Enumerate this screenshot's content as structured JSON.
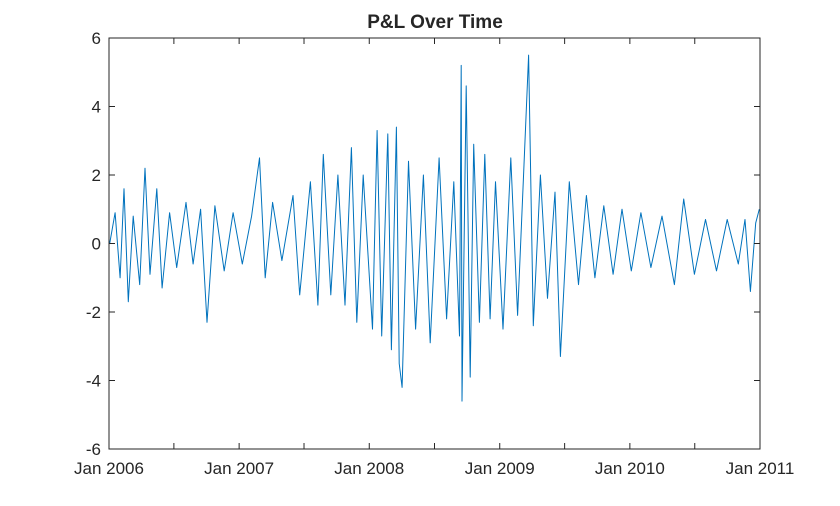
{
  "chart_data": {
    "type": "line",
    "title": "P&L Over Time",
    "xlabel": "",
    "ylabel": "",
    "xlim": [
      "2006-01-01",
      "2011-01-01"
    ],
    "ylim": [
      -6,
      6
    ],
    "grid": false,
    "legend": "none",
    "x_ticks": [
      "2006-01-01",
      "2007-01-01",
      "2008-01-01",
      "2009-01-01",
      "2010-01-01",
      "2011-01-01"
    ],
    "x_tick_labels": [
      "Jan 2006",
      "Jan 2007",
      "Jan 2008",
      "Jan 2009",
      "Jan 2010",
      "Jan 2011"
    ],
    "y_ticks": [
      -6,
      -4,
      -2,
      0,
      2,
      4,
      6
    ],
    "y_tick_labels": [
      "-6",
      "-4",
      "-2",
      "0",
      "2",
      "4",
      "6"
    ],
    "series": [
      {
        "color": "#0072BD",
        "points": [
          [
            "2006-01-03",
            0.0
          ],
          [
            "2006-01-18",
            0.9
          ],
          [
            "2006-02-01",
            -1.0
          ],
          [
            "2006-02-12",
            1.6
          ],
          [
            "2006-02-24",
            -1.7
          ],
          [
            "2006-03-10",
            0.8
          ],
          [
            "2006-03-28",
            -1.2
          ],
          [
            "2006-04-12",
            2.2
          ],
          [
            "2006-04-26",
            -0.9
          ],
          [
            "2006-05-15",
            1.6
          ],
          [
            "2006-05-30",
            -1.3
          ],
          [
            "2006-06-20",
            0.9
          ],
          [
            "2006-07-10",
            -0.7
          ],
          [
            "2006-08-05",
            1.2
          ],
          [
            "2006-08-25",
            -0.6
          ],
          [
            "2006-09-15",
            1.0
          ],
          [
            "2006-10-03",
            -2.3
          ],
          [
            "2006-10-25",
            1.1
          ],
          [
            "2006-11-20",
            -0.8
          ],
          [
            "2006-12-15",
            0.9
          ],
          [
            "2007-01-10",
            -0.6
          ],
          [
            "2007-02-05",
            0.8
          ],
          [
            "2007-02-27",
            2.5
          ],
          [
            "2007-03-15",
            -1.0
          ],
          [
            "2007-04-05",
            1.2
          ],
          [
            "2007-05-01",
            -0.5
          ],
          [
            "2007-06-01",
            1.4
          ],
          [
            "2007-06-20",
            -1.5
          ],
          [
            "2007-07-20",
            1.8
          ],
          [
            "2007-08-10",
            -1.8
          ],
          [
            "2007-08-25",
            2.6
          ],
          [
            "2007-09-15",
            -1.5
          ],
          [
            "2007-10-05",
            2.0
          ],
          [
            "2007-10-25",
            -1.8
          ],
          [
            "2007-11-12",
            2.8
          ],
          [
            "2007-11-27",
            -2.3
          ],
          [
            "2007-12-15",
            2.0
          ],
          [
            "2008-01-10",
            -2.5
          ],
          [
            "2008-01-23",
            3.3
          ],
          [
            "2008-02-05",
            -2.7
          ],
          [
            "2008-02-22",
            3.2
          ],
          [
            "2008-03-03",
            -3.1
          ],
          [
            "2008-03-17",
            3.4
          ],
          [
            "2008-03-25",
            -3.5
          ],
          [
            "2008-04-02",
            -4.2
          ],
          [
            "2008-04-20",
            2.4
          ],
          [
            "2008-05-10",
            -2.5
          ],
          [
            "2008-06-01",
            2.0
          ],
          [
            "2008-06-20",
            -2.9
          ],
          [
            "2008-07-15",
            2.5
          ],
          [
            "2008-08-05",
            -2.2
          ],
          [
            "2008-08-25",
            1.8
          ],
          [
            "2008-09-10",
            -2.7
          ],
          [
            "2008-09-15",
            5.2
          ],
          [
            "2008-09-17",
            -4.6
          ],
          [
            "2008-09-29",
            4.6
          ],
          [
            "2008-10-10",
            -3.9
          ],
          [
            "2008-10-20",
            2.9
          ],
          [
            "2008-11-05",
            -2.3
          ],
          [
            "2008-11-20",
            2.6
          ],
          [
            "2008-12-05",
            -2.2
          ],
          [
            "2008-12-20",
            1.8
          ],
          [
            "2009-01-10",
            -2.5
          ],
          [
            "2009-02-01",
            2.5
          ],
          [
            "2009-02-20",
            -2.1
          ],
          [
            "2009-03-10",
            2.3
          ],
          [
            "2009-03-23",
            5.5
          ],
          [
            "2009-04-05",
            -2.4
          ],
          [
            "2009-04-25",
            2.0
          ],
          [
            "2009-05-15",
            -1.6
          ],
          [
            "2009-06-05",
            1.5
          ],
          [
            "2009-06-20",
            -3.3
          ],
          [
            "2009-07-15",
            1.8
          ],
          [
            "2009-08-10",
            -1.2
          ],
          [
            "2009-09-01",
            1.4
          ],
          [
            "2009-09-25",
            -1.0
          ],
          [
            "2009-10-20",
            1.1
          ],
          [
            "2009-11-15",
            -0.9
          ],
          [
            "2009-12-10",
            1.0
          ],
          [
            "2010-01-05",
            -0.8
          ],
          [
            "2010-02-01",
            0.9
          ],
          [
            "2010-03-01",
            -0.7
          ],
          [
            "2010-04-01",
            0.8
          ],
          [
            "2010-05-06",
            -1.2
          ],
          [
            "2010-06-01",
            1.3
          ],
          [
            "2010-07-01",
            -0.9
          ],
          [
            "2010-08-01",
            0.7
          ],
          [
            "2010-09-01",
            -0.8
          ],
          [
            "2010-10-01",
            0.7
          ],
          [
            "2010-11-01",
            -0.6
          ],
          [
            "2010-11-20",
            0.7
          ],
          [
            "2010-12-05",
            -1.4
          ],
          [
            "2010-12-20",
            0.6
          ],
          [
            "2010-12-30",
            1.0
          ]
        ]
      }
    ]
  }
}
